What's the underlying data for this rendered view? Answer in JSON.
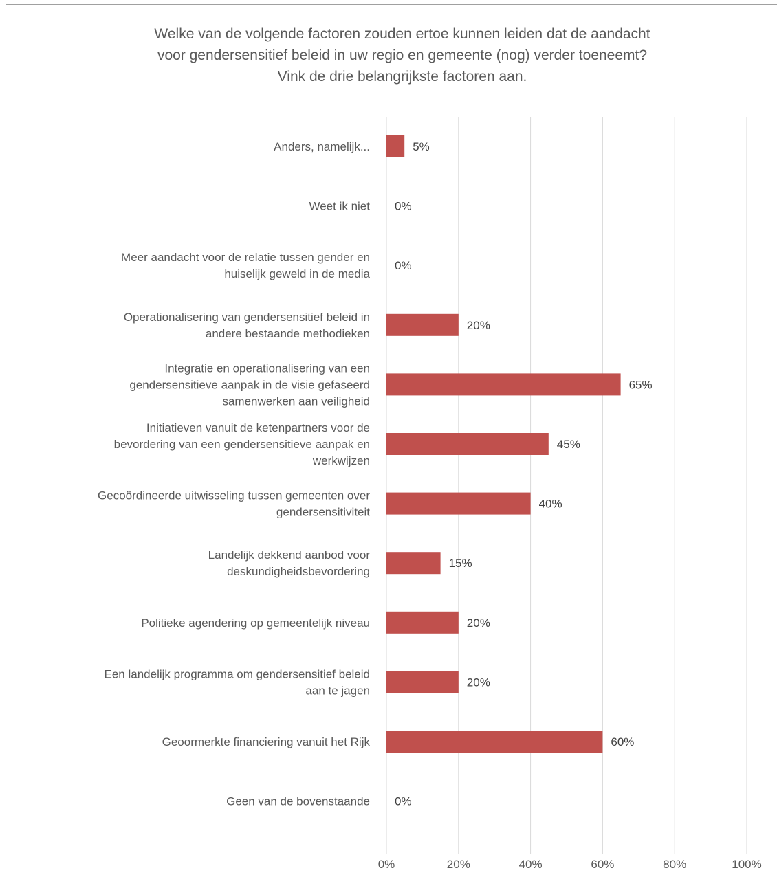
{
  "chart_data": {
    "type": "bar",
    "orientation": "horizontal",
    "title": "Welke van de volgende factoren zouden ertoe kunnen leiden dat de aandacht voor gendersensitief beleid in uw regio en gemeente (nog) verder toeneemt? Vink de drie belangrijkste factoren aan.",
    "title_lines": [
      "Welke van de volgende factoren zouden ertoe kunnen leiden dat de aandacht",
      "voor gendersensitief beleid in uw regio en gemeente (nog) verder toeneemt?",
      "Vink de drie belangrijkste factoren aan."
    ],
    "categories": [
      "Anders, namelijk...",
      "Weet ik niet",
      "Meer aandacht voor de relatie tussen gender en huiselijk geweld in de media",
      "Operationalisering van gendersensitief beleid in andere bestaande methodieken",
      "Integratie en operationalisering van een gendersensitieve aanpak in de visie gefaseerd samenwerken aan veiligheid",
      "Initiatieven vanuit de ketenpartners voor de bevordering van een gendersensitieve aanpak en werkwijzen",
      "Gecoördineerde uitwisseling tussen gemeenten over gendersensitiviteit",
      "Landelijk dekkend aanbod voor deskundigheidsbevordering",
      "Politieke agendering op gemeentelijk niveau",
      "Een landelijk programma om gendersensitief beleid aan te jagen",
      "Geoormerkte financiering vanuit het Rijk",
      "Geen van de bovenstaande"
    ],
    "category_lines": [
      [
        "Anders, namelijk..."
      ],
      [
        "Weet ik niet"
      ],
      [
        "Meer aandacht voor de relatie tussen gender en",
        "huiselijk geweld in de media"
      ],
      [
        "Operationalisering van gendersensitief beleid in",
        "andere bestaande methodieken"
      ],
      [
        "Integratie en operationalisering van een",
        "gendersensitieve aanpak in de visie gefaseerd",
        "samenwerken aan veiligheid"
      ],
      [
        "Initiatieven vanuit de ketenpartners voor de",
        "bevordering van een gendersensitieve aanpak en",
        "werkwijzen"
      ],
      [
        "Gecoördineerde uitwisseling tussen gemeenten over",
        "gendersensitiviteit"
      ],
      [
        "Landelijk dekkend aanbod voor",
        "deskundigheidsbevordering"
      ],
      [
        "Politieke agendering op gemeentelijk niveau"
      ],
      [
        "Een landelijk programma om gendersensitief beleid",
        "aan te jagen"
      ],
      [
        "Geoormerkte financiering vanuit het Rijk"
      ],
      [
        "Geen van de bovenstaande"
      ]
    ],
    "values": [
      5,
      0,
      0,
      20,
      65,
      45,
      40,
      15,
      20,
      20,
      60,
      0
    ],
    "data_labels": [
      "5%",
      "0%",
      "0%",
      "20%",
      "65%",
      "45%",
      "40%",
      "15%",
      "20%",
      "20%",
      "60%",
      "0%"
    ],
    "xlim": [
      0,
      100
    ],
    "x_ticks": [
      0,
      20,
      40,
      60,
      80,
      100
    ],
    "x_tick_labels": [
      "0%",
      "20%",
      "40%",
      "60%",
      "80%",
      "100%"
    ],
    "xlabel": "",
    "ylabel": "",
    "grid": true,
    "legend": "none",
    "colors": {
      "bar": "#c0504d",
      "grid": "#d9d9d9",
      "text": "#595959"
    }
  }
}
